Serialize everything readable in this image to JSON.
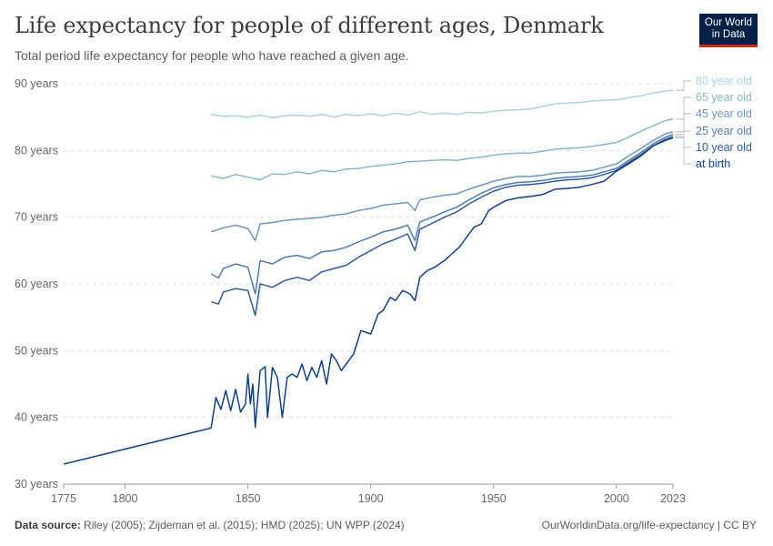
{
  "header": {
    "title": "Life expectancy for people of different ages, Denmark",
    "subtitle": "Total period life expectancy for people who have reached a given age."
  },
  "logo": {
    "line1": "Our World",
    "line2": "in Data"
  },
  "footer": {
    "source_label": "Data source:",
    "source_text": "Riley (2005); Zijdeman et al. (2015); HMD (2025); UN WPP (2024)",
    "url_text": "OurWorldinData.org/life-expectancy | CC BY"
  },
  "chart_data": {
    "type": "line",
    "title": "Life expectancy for people of different ages, Denmark",
    "subtitle": "Total period life expectancy for people who have reached a given age.",
    "xlim": [
      1775,
      2023
    ],
    "ylim": [
      30,
      90
    ],
    "x_ticks": [
      1775,
      1800,
      1850,
      1900,
      1950,
      2000,
      2023
    ],
    "y_ticks": [
      {
        "value": 30,
        "label": "30 years"
      },
      {
        "value": 40,
        "label": "40 years"
      },
      {
        "value": 50,
        "label": "50 years"
      },
      {
        "value": 60,
        "label": "60 years"
      },
      {
        "value": 70,
        "label": "70 years"
      },
      {
        "value": 80,
        "label": "80 years"
      },
      {
        "value": 90,
        "label": "90 years"
      }
    ],
    "grid": "horizontal dashed",
    "legend_placement": "right end labels",
    "series": [
      {
        "name": "80 year old",
        "color": "#a9d3e0",
        "points": [
          [
            1835,
            85.4
          ],
          [
            1840,
            85.1
          ],
          [
            1845,
            85.2
          ],
          [
            1850,
            85.0
          ],
          [
            1855,
            85.3
          ],
          [
            1860,
            84.9
          ],
          [
            1865,
            85.2
          ],
          [
            1870,
            85.3
          ],
          [
            1875,
            85.1
          ],
          [
            1880,
            85.4
          ],
          [
            1885,
            85.0
          ],
          [
            1890,
            85.4
          ],
          [
            1895,
            85.2
          ],
          [
            1900,
            85.5
          ],
          [
            1905,
            85.2
          ],
          [
            1910,
            85.6
          ],
          [
            1915,
            85.3
          ],
          [
            1920,
            85.8
          ],
          [
            1925,
            85.4
          ],
          [
            1930,
            85.6
          ],
          [
            1935,
            85.4
          ],
          [
            1940,
            85.7
          ],
          [
            1945,
            85.6
          ],
          [
            1950,
            85.9
          ],
          [
            1955,
            86.0
          ],
          [
            1960,
            86.1
          ],
          [
            1965,
            86.2
          ],
          [
            1970,
            86.6
          ],
          [
            1975,
            87.0
          ],
          [
            1980,
            87.1
          ],
          [
            1985,
            87.2
          ],
          [
            1990,
            87.4
          ],
          [
            1995,
            87.5
          ],
          [
            2000,
            87.6
          ],
          [
            2005,
            87.9
          ],
          [
            2010,
            88.2
          ],
          [
            2015,
            88.6
          ],
          [
            2020,
            88.9
          ],
          [
            2023,
            89.0
          ]
        ]
      },
      {
        "name": "65 year old",
        "color": "#89b6cc",
        "points": [
          [
            1835,
            76.2
          ],
          [
            1840,
            75.8
          ],
          [
            1845,
            76.4
          ],
          [
            1850,
            76.0
          ],
          [
            1855,
            75.6
          ],
          [
            1860,
            76.5
          ],
          [
            1865,
            76.4
          ],
          [
            1870,
            76.8
          ],
          [
            1875,
            76.5
          ],
          [
            1880,
            77.0
          ],
          [
            1885,
            76.8
          ],
          [
            1890,
            77.2
          ],
          [
            1895,
            77.3
          ],
          [
            1900,
            77.6
          ],
          [
            1905,
            77.8
          ],
          [
            1910,
            78.0
          ],
          [
            1915,
            78.3
          ],
          [
            1920,
            78.4
          ],
          [
            1925,
            78.5
          ],
          [
            1930,
            78.6
          ],
          [
            1935,
            78.5
          ],
          [
            1940,
            78.8
          ],
          [
            1945,
            79.0
          ],
          [
            1950,
            79.3
          ],
          [
            1955,
            79.5
          ],
          [
            1960,
            79.6
          ],
          [
            1965,
            79.6
          ],
          [
            1970,
            79.9
          ],
          [
            1975,
            80.2
          ],
          [
            1980,
            80.3
          ],
          [
            1985,
            80.4
          ],
          [
            1990,
            80.6
          ],
          [
            1995,
            80.9
          ],
          [
            2000,
            81.2
          ],
          [
            2005,
            82.0
          ],
          [
            2010,
            82.9
          ],
          [
            2015,
            83.7
          ],
          [
            2020,
            84.5
          ],
          [
            2023,
            84.7
          ]
        ]
      },
      {
        "name": "45 year old",
        "color": "#6d97bd",
        "points": [
          [
            1835,
            67.8
          ],
          [
            1840,
            68.4
          ],
          [
            1845,
            68.8
          ],
          [
            1850,
            68.3
          ],
          [
            1853,
            66.5
          ],
          [
            1855,
            69.0
          ],
          [
            1860,
            69.2
          ],
          [
            1865,
            69.5
          ],
          [
            1870,
            69.7
          ],
          [
            1875,
            69.8
          ],
          [
            1880,
            70.0
          ],
          [
            1885,
            70.3
          ],
          [
            1890,
            70.5
          ],
          [
            1895,
            71.0
          ],
          [
            1900,
            71.3
          ],
          [
            1905,
            71.8
          ],
          [
            1910,
            72.0
          ],
          [
            1915,
            72.2
          ],
          [
            1918,
            71.0
          ],
          [
            1920,
            72.6
          ],
          [
            1925,
            73.0
          ],
          [
            1930,
            73.3
          ],
          [
            1935,
            73.5
          ],
          [
            1940,
            74.2
          ],
          [
            1945,
            74.8
          ],
          [
            1950,
            75.4
          ],
          [
            1955,
            75.8
          ],
          [
            1960,
            76.1
          ],
          [
            1965,
            76.1
          ],
          [
            1970,
            76.3
          ],
          [
            1975,
            76.6
          ],
          [
            1980,
            76.7
          ],
          [
            1985,
            76.8
          ],
          [
            1990,
            77.0
          ],
          [
            1995,
            77.5
          ],
          [
            2000,
            78.0
          ],
          [
            2005,
            79.2
          ],
          [
            2010,
            80.3
          ],
          [
            2015,
            81.5
          ],
          [
            2020,
            82.5
          ],
          [
            2023,
            82.8
          ]
        ]
      },
      {
        "name": "25 year old",
        "color": "#4f79b0",
        "points": [
          [
            1835,
            61.5
          ],
          [
            1838,
            60.9
          ],
          [
            1840,
            62.3
          ],
          [
            1845,
            63.0
          ],
          [
            1850,
            62.5
          ],
          [
            1853,
            58.5
          ],
          [
            1855,
            63.5
          ],
          [
            1860,
            63.0
          ],
          [
            1865,
            64.0
          ],
          [
            1870,
            64.3
          ],
          [
            1875,
            63.8
          ],
          [
            1880,
            64.8
          ],
          [
            1885,
            65.0
          ],
          [
            1890,
            65.5
          ],
          [
            1895,
            66.3
          ],
          [
            1900,
            67.0
          ],
          [
            1905,
            67.8
          ],
          [
            1910,
            68.2
          ],
          [
            1915,
            68.8
          ],
          [
            1918,
            66.5
          ],
          [
            1920,
            69.3
          ],
          [
            1925,
            70.0
          ],
          [
            1930,
            70.8
          ],
          [
            1935,
            71.5
          ],
          [
            1940,
            72.6
          ],
          [
            1945,
            73.6
          ],
          [
            1950,
            74.4
          ],
          [
            1955,
            74.9
          ],
          [
            1960,
            75.2
          ],
          [
            1965,
            75.3
          ],
          [
            1970,
            75.5
          ],
          [
            1975,
            75.8
          ],
          [
            1980,
            76.0
          ],
          [
            1985,
            76.1
          ],
          [
            1990,
            76.3
          ],
          [
            1995,
            76.8
          ],
          [
            2000,
            77.3
          ],
          [
            2005,
            78.5
          ],
          [
            2010,
            79.7
          ],
          [
            2015,
            81.0
          ],
          [
            2020,
            82.0
          ],
          [
            2023,
            82.4
          ]
        ]
      },
      {
        "name": "10 year old",
        "color": "#2e5c9c",
        "points": [
          [
            1835,
            57.3
          ],
          [
            1838,
            57.0
          ],
          [
            1840,
            58.8
          ],
          [
            1845,
            59.3
          ],
          [
            1850,
            59.0
          ],
          [
            1853,
            55.3
          ],
          [
            1855,
            60.0
          ],
          [
            1860,
            59.5
          ],
          [
            1865,
            60.5
          ],
          [
            1870,
            61.0
          ],
          [
            1875,
            60.5
          ],
          [
            1880,
            61.8
          ],
          [
            1885,
            62.3
          ],
          [
            1890,
            62.8
          ],
          [
            1895,
            64.0
          ],
          [
            1900,
            65.0
          ],
          [
            1905,
            66.0
          ],
          [
            1910,
            66.7
          ],
          [
            1915,
            67.5
          ],
          [
            1918,
            65.0
          ],
          [
            1920,
            68.2
          ],
          [
            1925,
            69.1
          ],
          [
            1930,
            70.0
          ],
          [
            1935,
            70.8
          ],
          [
            1940,
            72.0
          ],
          [
            1945,
            73.0
          ],
          [
            1950,
            73.9
          ],
          [
            1955,
            74.5
          ],
          [
            1960,
            74.8
          ],
          [
            1965,
            74.9
          ],
          [
            1970,
            75.1
          ],
          [
            1975,
            75.4
          ],
          [
            1980,
            75.6
          ],
          [
            1985,
            75.7
          ],
          [
            1990,
            75.9
          ],
          [
            1995,
            76.4
          ],
          [
            2000,
            77.0
          ],
          [
            2005,
            78.2
          ],
          [
            2010,
            79.4
          ],
          [
            2015,
            80.7
          ],
          [
            2020,
            81.7
          ],
          [
            2023,
            82.1
          ]
        ]
      },
      {
        "name": "at birth",
        "color": "#0e3f8c",
        "points": [
          [
            1775,
            33.0
          ],
          [
            1835,
            38.4
          ],
          [
            1837,
            43.0
          ],
          [
            1839,
            41.2
          ],
          [
            1841,
            44.0
          ],
          [
            1843,
            41.0
          ],
          [
            1845,
            44.2
          ],
          [
            1847,
            40.8
          ],
          [
            1849,
            42.0
          ],
          [
            1850,
            46.5
          ],
          [
            1851,
            42.0
          ],
          [
            1852,
            45.0
          ],
          [
            1853,
            38.5
          ],
          [
            1855,
            47.0
          ],
          [
            1857,
            47.6
          ],
          [
            1858,
            40.0
          ],
          [
            1860,
            47.5
          ],
          [
            1862,
            46.0
          ],
          [
            1864,
            40.0
          ],
          [
            1866,
            46.0
          ],
          [
            1868,
            46.5
          ],
          [
            1870,
            46.0
          ],
          [
            1872,
            48.0
          ],
          [
            1874,
            45.5
          ],
          [
            1876,
            47.5
          ],
          [
            1878,
            46.0
          ],
          [
            1880,
            48.5
          ],
          [
            1882,
            45.0
          ],
          [
            1884,
            49.5
          ],
          [
            1886,
            48.5
          ],
          [
            1888,
            47.0
          ],
          [
            1890,
            48.0
          ],
          [
            1893,
            49.5
          ],
          [
            1896,
            53.0
          ],
          [
            1900,
            52.5
          ],
          [
            1903,
            55.5
          ],
          [
            1905,
            56.0
          ],
          [
            1908,
            58.0
          ],
          [
            1910,
            57.5
          ],
          [
            1913,
            59.0
          ],
          [
            1916,
            58.5
          ],
          [
            1918,
            57.5
          ],
          [
            1920,
            61.0
          ],
          [
            1923,
            62.0
          ],
          [
            1926,
            62.5
          ],
          [
            1930,
            63.5
          ],
          [
            1933,
            64.5
          ],
          [
            1936,
            65.5
          ],
          [
            1939,
            67.0
          ],
          [
            1942,
            68.5
          ],
          [
            1945,
            69.0
          ],
          [
            1948,
            71.0
          ],
          [
            1950,
            71.5
          ],
          [
            1955,
            72.5
          ],
          [
            1960,
            72.9
          ],
          [
            1965,
            73.1
          ],
          [
            1970,
            73.4
          ],
          [
            1975,
            74.2
          ],
          [
            1980,
            74.3
          ],
          [
            1985,
            74.5
          ],
          [
            1990,
            74.9
          ],
          [
            1995,
            75.4
          ],
          [
            2000,
            76.9
          ],
          [
            2005,
            78.0
          ],
          [
            2010,
            79.2
          ],
          [
            2015,
            80.7
          ],
          [
            2020,
            81.5
          ],
          [
            2023,
            81.9
          ]
        ]
      }
    ]
  }
}
